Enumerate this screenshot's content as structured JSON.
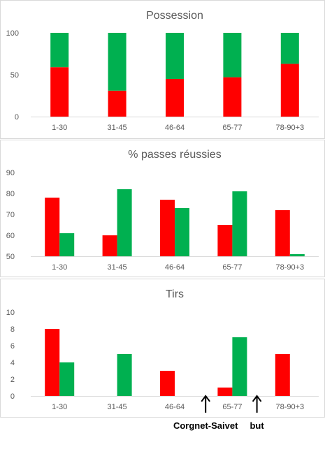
{
  "colors": {
    "red": "#FF0000",
    "green": "#00B050",
    "axis": "#D9D9D9",
    "text": "#595959",
    "title": "#595959",
    "annotation": "#000000",
    "panel_border": "#D9D9D9"
  },
  "chart_data": [
    {
      "type": "bar",
      "title": "Possession",
      "stacked": true,
      "categories": [
        "1-30",
        "31-45",
        "46-64",
        "65-77",
        "78-90+3"
      ],
      "ylim": [
        0,
        100
      ],
      "yticks": [
        0,
        50,
        100
      ],
      "grid": false,
      "series": [
        {
          "color": "#FF0000",
          "values": [
            59,
            31,
            45,
            47,
            63
          ]
        },
        {
          "color": "#00B050",
          "values": [
            41,
            69,
            55,
            53,
            37
          ]
        }
      ]
    },
    {
      "type": "bar",
      "title": "% passes réussies",
      "stacked": false,
      "categories": [
        "1-30",
        "31-45",
        "46-64",
        "65-77",
        "78-90+3"
      ],
      "ylim": [
        50,
        90
      ],
      "yticks": [
        50,
        60,
        70,
        80,
        90
      ],
      "grid": false,
      "series": [
        {
          "color": "#FF0000",
          "values": [
            78,
            60,
            77,
            65,
            72
          ]
        },
        {
          "color": "#00B050",
          "values": [
            61,
            82,
            73,
            81,
            51
          ]
        }
      ]
    },
    {
      "type": "bar",
      "title": "Tirs",
      "stacked": false,
      "categories": [
        "1-30",
        "31-45",
        "46-64",
        "65-77",
        "78-90+3"
      ],
      "ylim": [
        0,
        10
      ],
      "yticks": [
        0,
        2,
        4,
        6,
        8,
        10
      ],
      "grid": false,
      "series": [
        {
          "color": "#FF0000",
          "values": [
            8,
            0,
            3,
            1,
            5
          ]
        },
        {
          "color": "#00B050",
          "values": [
            4,
            5,
            0,
            7,
            0
          ]
        }
      ],
      "annotations": [
        {
          "text": "Corgnet-Saivet",
          "between": [
            "46-64",
            "65-77"
          ]
        },
        {
          "text": "but",
          "between": [
            "65-77",
            "78-90+3"
          ]
        }
      ]
    }
  ]
}
